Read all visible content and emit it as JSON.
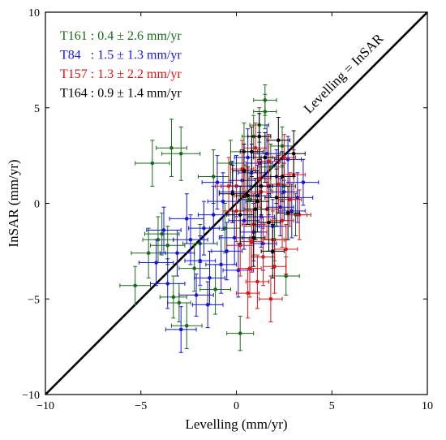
{
  "chart_data": {
    "type": "scatter",
    "title": "",
    "xlabel": "Levelling (mm/yr)",
    "ylabel": "InSAR (mm/yr)",
    "xlim": [
      -10,
      10
    ],
    "ylim": [
      -10,
      10
    ],
    "xticks": [
      -10,
      -5,
      0,
      5,
      10
    ],
    "yticks": [
      -10,
      -5,
      0,
      5,
      10
    ],
    "xtick_labels": [
      "−10",
      "−5",
      "0",
      "5",
      "10"
    ],
    "ytick_labels": [
      "−10",
      "−5",
      "0",
      "5",
      "10"
    ],
    "grid": false,
    "legend_placement": "top-left",
    "reference_line": {
      "label": "Levelling = InSAR",
      "slope": 1,
      "intercept": 0,
      "color": "#000000"
    },
    "series": [
      {
        "name": "T161",
        "color": "#1a6b1a",
        "stat": "T161 : 0.4 ± 2.6 mm/yr",
        "points": [
          {
            "x": -4.4,
            "y": 2.1,
            "xe": 0.9,
            "ye": 1.2
          },
          {
            "x": -3.4,
            "y": 2.9,
            "xe": 0.8,
            "ye": 1.5
          },
          {
            "x": -2.9,
            "y": 2.6,
            "xe": 1.0,
            "ye": 1.4
          },
          {
            "x": -5.3,
            "y": -4.3,
            "xe": 0.8,
            "ye": 1.0
          },
          {
            "x": -4.6,
            "y": -2.6,
            "xe": 0.9,
            "ye": 1.3
          },
          {
            "x": -3.3,
            "y": -4.9,
            "xe": 0.7,
            "ye": 1.1
          },
          {
            "x": -2.6,
            "y": -6.4,
            "xe": 0.8,
            "ye": 1.2
          },
          {
            "x": -3.0,
            "y": -5.2,
            "xe": 0.6,
            "ye": 1.0
          },
          {
            "x": 0.2,
            "y": -6.8,
            "xe": 0.7,
            "ye": 0.9
          },
          {
            "x": -3.9,
            "y": -1.6,
            "xe": 0.9,
            "ye": 1.1
          },
          {
            "x": -4.1,
            "y": -1.9,
            "xe": 0.8,
            "ye": 1.2
          },
          {
            "x": -1.9,
            "y": -2.1,
            "xe": 0.9,
            "ye": 1.0
          },
          {
            "x": -1.2,
            "y": 1.4,
            "xe": 0.8,
            "ye": 1.4
          },
          {
            "x": 0.4,
            "y": 2.7,
            "xe": 0.7,
            "ye": 1.5
          },
          {
            "x": 1.5,
            "y": 5.4,
            "xe": 0.6,
            "ye": 0.8
          },
          {
            "x": 1.5,
            "y": 4.8,
            "xe": 0.6,
            "ye": 0.9
          },
          {
            "x": 1.2,
            "y": 4.1,
            "xe": 0.5,
            "ye": 0.9
          },
          {
            "x": 0.9,
            "y": 3.5,
            "xe": 0.6,
            "ye": 1.1
          },
          {
            "x": 2.4,
            "y": 3.0,
            "xe": 0.6,
            "ye": 1.0
          },
          {
            "x": 1.8,
            "y": 1.9,
            "xe": 0.7,
            "ye": 1.2
          },
          {
            "x": 2.5,
            "y": 0.9,
            "xe": 0.6,
            "ye": 1.2
          },
          {
            "x": 3.1,
            "y": -0.6,
            "xe": 0.6,
            "ye": 1.1
          },
          {
            "x": 2.6,
            "y": -3.8,
            "xe": 0.7,
            "ye": 1.0
          },
          {
            "x": -0.6,
            "y": -1.3,
            "xe": 0.8,
            "ye": 1.3
          },
          {
            "x": -2.2,
            "y": -3.4,
            "xe": 0.8,
            "ye": 1.2
          },
          {
            "x": -1.1,
            "y": -4.5,
            "xe": 0.8,
            "ye": 1.3
          },
          {
            "x": 0.7,
            "y": 0.2,
            "xe": 0.6,
            "ye": 1.4
          },
          {
            "x": -0.3,
            "y": 2.1,
            "xe": 0.7,
            "ye": 1.2
          },
          {
            "x": 2.0,
            "y": -1.9,
            "xe": 0.6,
            "ye": 1.1
          },
          {
            "x": -3.6,
            "y": -2.2,
            "xe": 0.9,
            "ye": 1.0
          }
        ]
      },
      {
        "name": "T84",
        "color": "#1515e0",
        "stat": "T84   : 1.5 ± 1.3 mm/yr",
        "points": [
          {
            "x": -3.6,
            "y": -4.2,
            "xe": 0.9,
            "ye": 1.3
          },
          {
            "x": -2.9,
            "y": -6.6,
            "xe": 0.8,
            "ye": 1.2
          },
          {
            "x": -2.1,
            "y": -4.8,
            "xe": 0.9,
            "ye": 1.1
          },
          {
            "x": -1.4,
            "y": -3.9,
            "xe": 0.8,
            "ye": 1.4
          },
          {
            "x": -0.8,
            "y": -3.2,
            "xe": 0.8,
            "ye": 1.5
          },
          {
            "x": -3.1,
            "y": -2.6,
            "xe": 0.9,
            "ye": 1.2
          },
          {
            "x": -2.4,
            "y": -1.9,
            "xe": 0.9,
            "ye": 1.3
          },
          {
            "x": -1.7,
            "y": -1.3,
            "xe": 0.8,
            "ye": 1.4
          },
          {
            "x": -1.2,
            "y": -0.6,
            "xe": 0.8,
            "ye": 1.5
          },
          {
            "x": -0.7,
            "y": 0.1,
            "xe": 0.8,
            "ye": 1.5
          },
          {
            "x": -0.2,
            "y": 0.6,
            "xe": 0.7,
            "ye": 1.6
          },
          {
            "x": 0.3,
            "y": 1.2,
            "xe": 0.7,
            "ye": 1.6
          },
          {
            "x": 0.8,
            "y": 1.6,
            "xe": 0.7,
            "ye": 1.5
          },
          {
            "x": 1.2,
            "y": 2.1,
            "xe": 0.7,
            "ye": 1.6
          },
          {
            "x": 1.6,
            "y": 2.6,
            "xe": 0.7,
            "ye": 1.5
          },
          {
            "x": 2.1,
            "y": 1.4,
            "xe": 0.7,
            "ye": 1.4
          },
          {
            "x": 2.5,
            "y": 0.6,
            "xe": 0.7,
            "ye": 1.5
          },
          {
            "x": 2.9,
            "y": -0.4,
            "xe": 0.7,
            "ye": 1.4
          },
          {
            "x": 3.2,
            "y": 0.3,
            "xe": 0.8,
            "ye": 1.3
          },
          {
            "x": 2.7,
            "y": 2.3,
            "xe": 0.7,
            "ye": 1.2
          },
          {
            "x": 1.9,
            "y": -1.2,
            "xe": 0.7,
            "ye": 1.4
          },
          {
            "x": 1.4,
            "y": -2.1,
            "xe": 0.7,
            "ye": 1.4
          },
          {
            "x": 0.9,
            "y": -1.5,
            "xe": 0.7,
            "ye": 1.5
          },
          {
            "x": 0.4,
            "y": -0.9,
            "xe": 0.8,
            "ye": 1.5
          },
          {
            "x": -0.1,
            "y": -1.8,
            "xe": 0.8,
            "ye": 1.4
          },
          {
            "x": -0.5,
            "y": -2.5,
            "xe": 0.8,
            "ye": 1.5
          },
          {
            "x": 0.1,
            "y": -3.5,
            "xe": 0.8,
            "ye": 1.4
          },
          {
            "x": -1.9,
            "y": -3.0,
            "xe": 0.8,
            "ye": 1.3
          },
          {
            "x": -2.6,
            "y": -0.8,
            "xe": 0.9,
            "ye": 1.3
          },
          {
            "x": -1.0,
            "y": 1.1,
            "xe": 0.8,
            "ye": 1.4
          },
          {
            "x": 0.6,
            "y": 2.4,
            "xe": 0.7,
            "ye": 1.5
          },
          {
            "x": 1.1,
            "y": 0.4,
            "xe": 0.7,
            "ye": 1.6
          },
          {
            "x": 1.7,
            "y": 0.9,
            "xe": 0.7,
            "ye": 1.5
          },
          {
            "x": 2.3,
            "y": -0.2,
            "xe": 0.7,
            "ye": 1.5
          },
          {
            "x": 3.5,
            "y": 1.1,
            "xe": 0.8,
            "ye": 1.2
          },
          {
            "x": -4.2,
            "y": -3.1,
            "xe": 0.9,
            "ye": 1.2
          },
          {
            "x": -3.8,
            "y": -1.4,
            "xe": 0.9,
            "ye": 1.2
          },
          {
            "x": -1.5,
            "y": -5.3,
            "xe": 0.8,
            "ye": 1.2
          },
          {
            "x": 0.0,
            "y": 0.9,
            "xe": 0.8,
            "ye": 1.6
          },
          {
            "x": 1.3,
            "y": -0.7,
            "xe": 0.7,
            "ye": 1.6
          }
        ]
      },
      {
        "name": "T157",
        "color": "#e01515",
        "stat": "T157 : 1.3 ± 2.2 mm/yr",
        "points": [
          {
            "x": 0.2,
            "y": -2.2,
            "xe": 0.7,
            "ye": 1.6
          },
          {
            "x": 0.7,
            "y": -3.4,
            "xe": 0.6,
            "ye": 1.5
          },
          {
            "x": 1.1,
            "y": -4.1,
            "xe": 0.6,
            "ye": 1.4
          },
          {
            "x": 1.4,
            "y": -2.8,
            "xe": 0.6,
            "ye": 1.5
          },
          {
            "x": 1.9,
            "y": -1.9,
            "xe": 0.6,
            "ye": 1.5
          },
          {
            "x": 2.4,
            "y": -0.9,
            "xe": 0.6,
            "ye": 1.4
          },
          {
            "x": 2.8,
            "y": 0.2,
            "xe": 0.6,
            "ye": 1.4
          },
          {
            "x": 0.9,
            "y": -1.1,
            "xe": 0.6,
            "ye": 1.6
          },
          {
            "x": 0.5,
            "y": 0.4,
            "xe": 0.6,
            "ye": 1.6
          },
          {
            "x": 1.2,
            "y": 1.3,
            "xe": 0.6,
            "ye": 1.5
          },
          {
            "x": 1.7,
            "y": 2.2,
            "xe": 0.6,
            "ye": 1.4
          },
          {
            "x": 2.2,
            "y": 1.0,
            "xe": 0.6,
            "ye": 1.5
          },
          {
            "x": 0.0,
            "y": -0.4,
            "xe": 0.7,
            "ye": 1.6
          },
          {
            "x": 0.6,
            "y": -4.7,
            "xe": 0.6,
            "ye": 1.3
          },
          {
            "x": 1.6,
            "y": -0.3,
            "xe": 0.6,
            "ye": 1.6
          },
          {
            "x": 2.6,
            "y": -2.4,
            "xe": 0.6,
            "ye": 1.3
          },
          {
            "x": 3.0,
            "y": 1.5,
            "xe": 0.6,
            "ye": 1.3
          },
          {
            "x": 1.0,
            "y": 2.9,
            "xe": 0.6,
            "ye": 1.3
          },
          {
            "x": 0.3,
            "y": 1.8,
            "xe": 0.6,
            "ye": 1.5
          },
          {
            "x": 2.0,
            "y": -3.3,
            "xe": 0.6,
            "ye": 1.4
          },
          {
            "x": 1.3,
            "y": 0.6,
            "xe": 0.6,
            "ye": 1.6
          },
          {
            "x": 0.8,
            "y": -2.0,
            "xe": 0.6,
            "ye": 1.6
          },
          {
            "x": 2.5,
            "y": 2.4,
            "xe": 0.6,
            "ye": 1.2
          },
          {
            "x": 3.3,
            "y": -0.6,
            "xe": 0.6,
            "ye": 1.3
          },
          {
            "x": -0.4,
            "y": 0.9,
            "xe": 0.7,
            "ye": 1.5
          },
          {
            "x": 1.8,
            "y": -5.0,
            "xe": 0.6,
            "ye": 1.2
          }
        ]
      },
      {
        "name": "T164",
        "color": "#000000",
        "stat": "T164 : 0.9 ± 1.4 mm/yr",
        "points": [
          {
            "x": 0.6,
            "y": 0.4,
            "xe": 0.6,
            "ye": 1.5
          },
          {
            "x": 1.0,
            "y": -0.3,
            "xe": 0.6,
            "ye": 1.6
          },
          {
            "x": 1.3,
            "y": 0.9,
            "xe": 0.6,
            "ye": 1.5
          },
          {
            "x": 1.7,
            "y": -1.0,
            "xe": 0.6,
            "ye": 1.5
          },
          {
            "x": 2.1,
            "y": 0.3,
            "xe": 0.6,
            "ye": 1.5
          },
          {
            "x": 0.4,
            "y": 1.7,
            "xe": 0.6,
            "ye": 1.4
          },
          {
            "x": 1.5,
            "y": 2.4,
            "xe": 0.6,
            "ye": 1.3
          },
          {
            "x": 2.4,
            "y": 1.4,
            "xe": 0.6,
            "ye": 1.3
          },
          {
            "x": 0.9,
            "y": -1.8,
            "xe": 0.6,
            "ye": 1.5
          },
          {
            "x": 1.9,
            "y": -2.5,
            "xe": 0.6,
            "ye": 1.4
          },
          {
            "x": 0.2,
            "y": -0.6,
            "xe": 0.7,
            "ye": 1.5
          },
          {
            "x": 2.7,
            "y": -0.5,
            "xe": 0.6,
            "ye": 1.4
          },
          {
            "x": 1.2,
            "y": 3.5,
            "xe": 0.6,
            "ye": 1.2
          },
          {
            "x": 3.0,
            "y": 2.6,
            "xe": 0.6,
            "ye": 1.2
          },
          {
            "x": 0.8,
            "y": 2.7,
            "xe": 0.6,
            "ye": 1.3
          },
          {
            "x": 1.1,
            "y": 0.1,
            "xe": 0.6,
            "ye": 1.6
          },
          {
            "x": 2.2,
            "y": 3.3,
            "xe": 0.6,
            "ye": 1.2
          },
          {
            "x": -0.2,
            "y": 0.5,
            "xe": 0.7,
            "ye": 1.5
          }
        ]
      }
    ]
  }
}
